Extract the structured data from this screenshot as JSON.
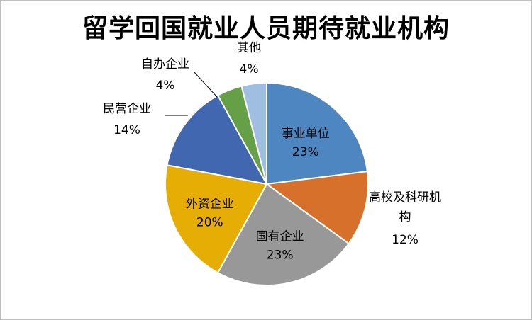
{
  "chart_data": {
    "type": "pie",
    "title": "留学回国就业人员期待就业机构",
    "slices": [
      {
        "name": "事业单位",
        "value": 23,
        "label": "23%",
        "color": "#4E86C1"
      },
      {
        "name": "高校及科研机构",
        "value": 12,
        "label": "12%",
        "color": "#D7702A"
      },
      {
        "name": "国有企业",
        "value": 23,
        "label": "23%",
        "color": "#989898"
      },
      {
        "name": "外资企业",
        "value": 20,
        "label": "20%",
        "color": "#E6AD04"
      },
      {
        "name": "民营企业",
        "value": 14,
        "label": "14%",
        "color": "#4267B1"
      },
      {
        "name": "自办企业",
        "value": 4,
        "label": "4%",
        "color": "#66A046"
      },
      {
        "name": "其他",
        "value": 4,
        "label": "4%",
        "color": "#9FBEE1"
      }
    ]
  }
}
